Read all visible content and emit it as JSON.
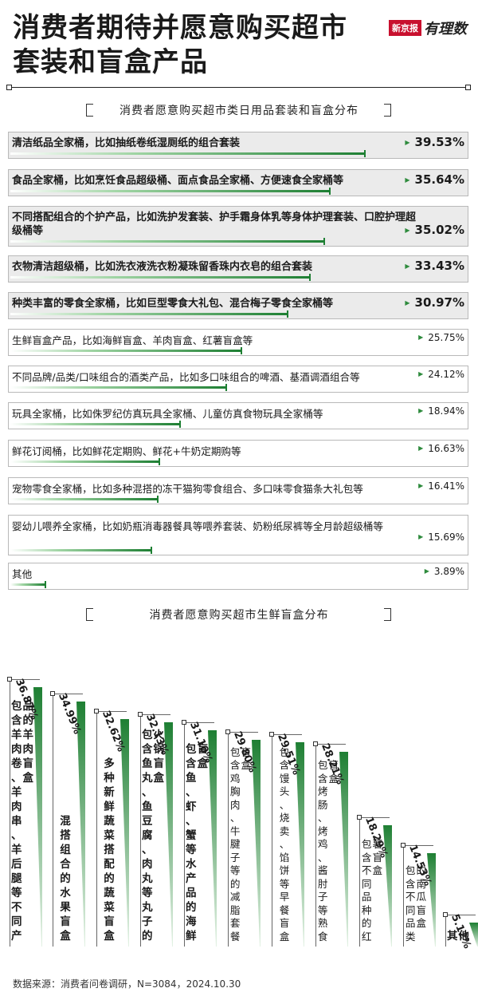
{
  "header": {
    "title": "消费者期待并愿意购买超市套装和盲盒产品",
    "logo_mark": "新京报",
    "logo_text": "有理数"
  },
  "colors": {
    "bar_green": "#1e7f33",
    "bar_light": "#9fd4a3",
    "row_shade": "#ebebeb",
    "triangle": "#2e8b3d"
  },
  "chart_data": [
    {
      "type": "bar",
      "orientation": "horizontal",
      "title": "消费者愿意购买超市类日用品套装和盲盒分布",
      "value_unit": "%",
      "xlim": [
        0,
        40
      ],
      "categories": [
        "清洁纸品全家桶，比如抽纸卷纸湿厕纸的组合套装",
        "食品全家桶，比如烹饪食品超级桶、面点食品全家桶、方便速食全家桶等",
        "不同搭配组合的个护产品，比如洗护发套装、护手霜身体乳等身体护理套装、口腔护理超级桶等",
        "衣物清洁超级桶，比如洗衣液洗衣粉凝珠留香珠内衣皂的组合套装",
        "种类丰富的零食全家桶，比如巨型零食大礼包、混合梅子零食全家桶等",
        "生鲜盲盒产品，比如海鲜盲盒、羊肉盲盒、红薯盲盒等",
        "不同品牌/品类/口味组合的酒类产品，比如多口味组合的啤酒、基酒调酒组合等",
        "玩具全家桶，比如侏罗纪仿真玩具全家桶、儿童仿真食物玩具全家桶等",
        "鲜花订阅桶，比如鲜花定期购、鲜花+牛奶定期购等",
        "宠物零食全家桶，比如多种混搭的冻干猫狗零食组合、多口味零食猫条大礼包等",
        "婴幼儿喂养全家桶，比如奶瓶消毒器餐具等喂养套装、奶粉纸尿裤等全月龄超级桶等",
        "其他"
      ],
      "values": [
        39.53,
        35.64,
        35.02,
        33.43,
        30.97,
        25.75,
        24.12,
        18.94,
        16.63,
        16.41,
        15.69,
        3.89
      ],
      "value_labels": [
        "39.53%",
        "35.64%",
        "35.02%",
        "33.43%",
        "30.97%",
        "25.75%",
        "24.12%",
        "18.94%",
        "16.63%",
        "16.41%",
        "15.69%",
        "3.89%"
      ]
    },
    {
      "type": "bar",
      "orientation": "vertical",
      "title": "消费者愿意购买超市生鲜盲盒分布",
      "value_unit": "%",
      "ylim": [
        0,
        40
      ],
      "categories": [
        "包含羊肉卷、羊肉串、羊后腿等不同产品的羊肉盲盒",
        "混搭组合的水果盲盒",
        "多种新鲜蔬菜搭配的蔬菜盲盒",
        "包含鱼丸、鱼豆腐、肉丸等丸子的火锅盲盒",
        "包含鱼、虾、蟹等水产品的海鲜盲盒",
        "包含鸡胸肉、牛腱子等的减脂套餐盲盒",
        "包含馒头、烧卖、馅饼等早餐盲盒",
        "包含烤肠、烤鸡、酱肘子等熟食盲盒",
        "包含不同品种的红薯盲盒",
        "包含不同品类的南瓜盲盒",
        "其他"
      ],
      "values": [
        36.87,
        34.99,
        32.62,
        32.13,
        31.1,
        29.8,
        29.51,
        28.21,
        18.29,
        14.53,
        5.12
      ],
      "value_labels": [
        "36.87%",
        "34.99%",
        "32.62%",
        "32.13%",
        "31.10%",
        "29.80%",
        "29.51%",
        "28.21%",
        "18.29%",
        "14.53%",
        "5.12%"
      ]
    }
  ],
  "footer": {
    "source": "数据来源：消费者问卷调研，N=3084，2024.10.30"
  }
}
